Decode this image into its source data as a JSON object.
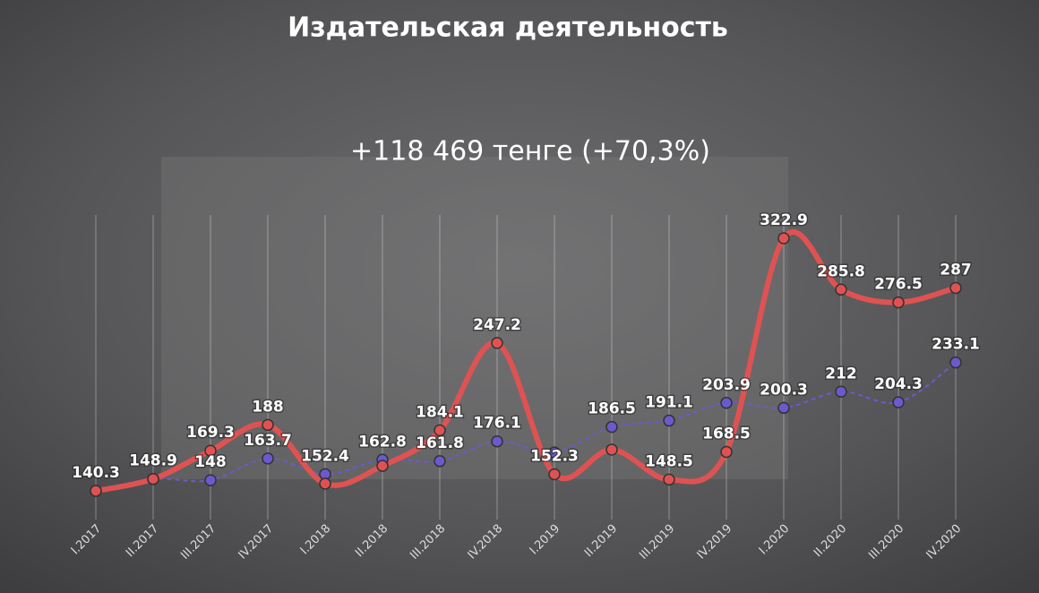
{
  "chart_data": {
    "type": "line",
    "title": "Издательская деятельность",
    "subtitle": "+118 469 тенге (+70,3%)",
    "categories": [
      "I.2017",
      "II.2017",
      "III.2017",
      "IV.2017",
      "I.2018",
      "II.2018",
      "III.2018",
      "IV.2018",
      "I.2019",
      "II.2019",
      "III.2019",
      "IV.2019",
      "I.2020",
      "II.2020",
      "III.2020",
      "IV.2020"
    ],
    "series": [
      {
        "color": "#e05252",
        "values": [
          140.3,
          148.9,
          169.3,
          188,
          145.5,
          158.4,
          184.1,
          247.2,
          152.3,
          170.1,
          148.5,
          168.5,
          322.9,
          285.8,
          276.5,
          287
        ],
        "value_labels": [
          "140.3",
          "148.9",
          "169.3",
          "188",
          null,
          null,
          "184.1",
          "247.2",
          "152.3",
          null,
          "148.5",
          "168.5",
          "322.9",
          "285.8",
          "276.5",
          "287"
        ]
      },
      {
        "color": "#6a5acd",
        "values": [
          140.3,
          148.9,
          148,
          163.7,
          152.4,
          162.8,
          161.8,
          176.1,
          168.1,
          186.5,
          191.1,
          203.9,
          200.3,
          212,
          204.3,
          233.1
        ],
        "value_labels": [
          null,
          null,
          "148",
          "163.7",
          "152.4",
          "162.8",
          "161.8",
          "176.1",
          null,
          "186.5",
          "191.1",
          "203.9",
          "200.3",
          "212",
          "204.3",
          "233.1"
        ]
      }
    ],
    "grid": true
  }
}
